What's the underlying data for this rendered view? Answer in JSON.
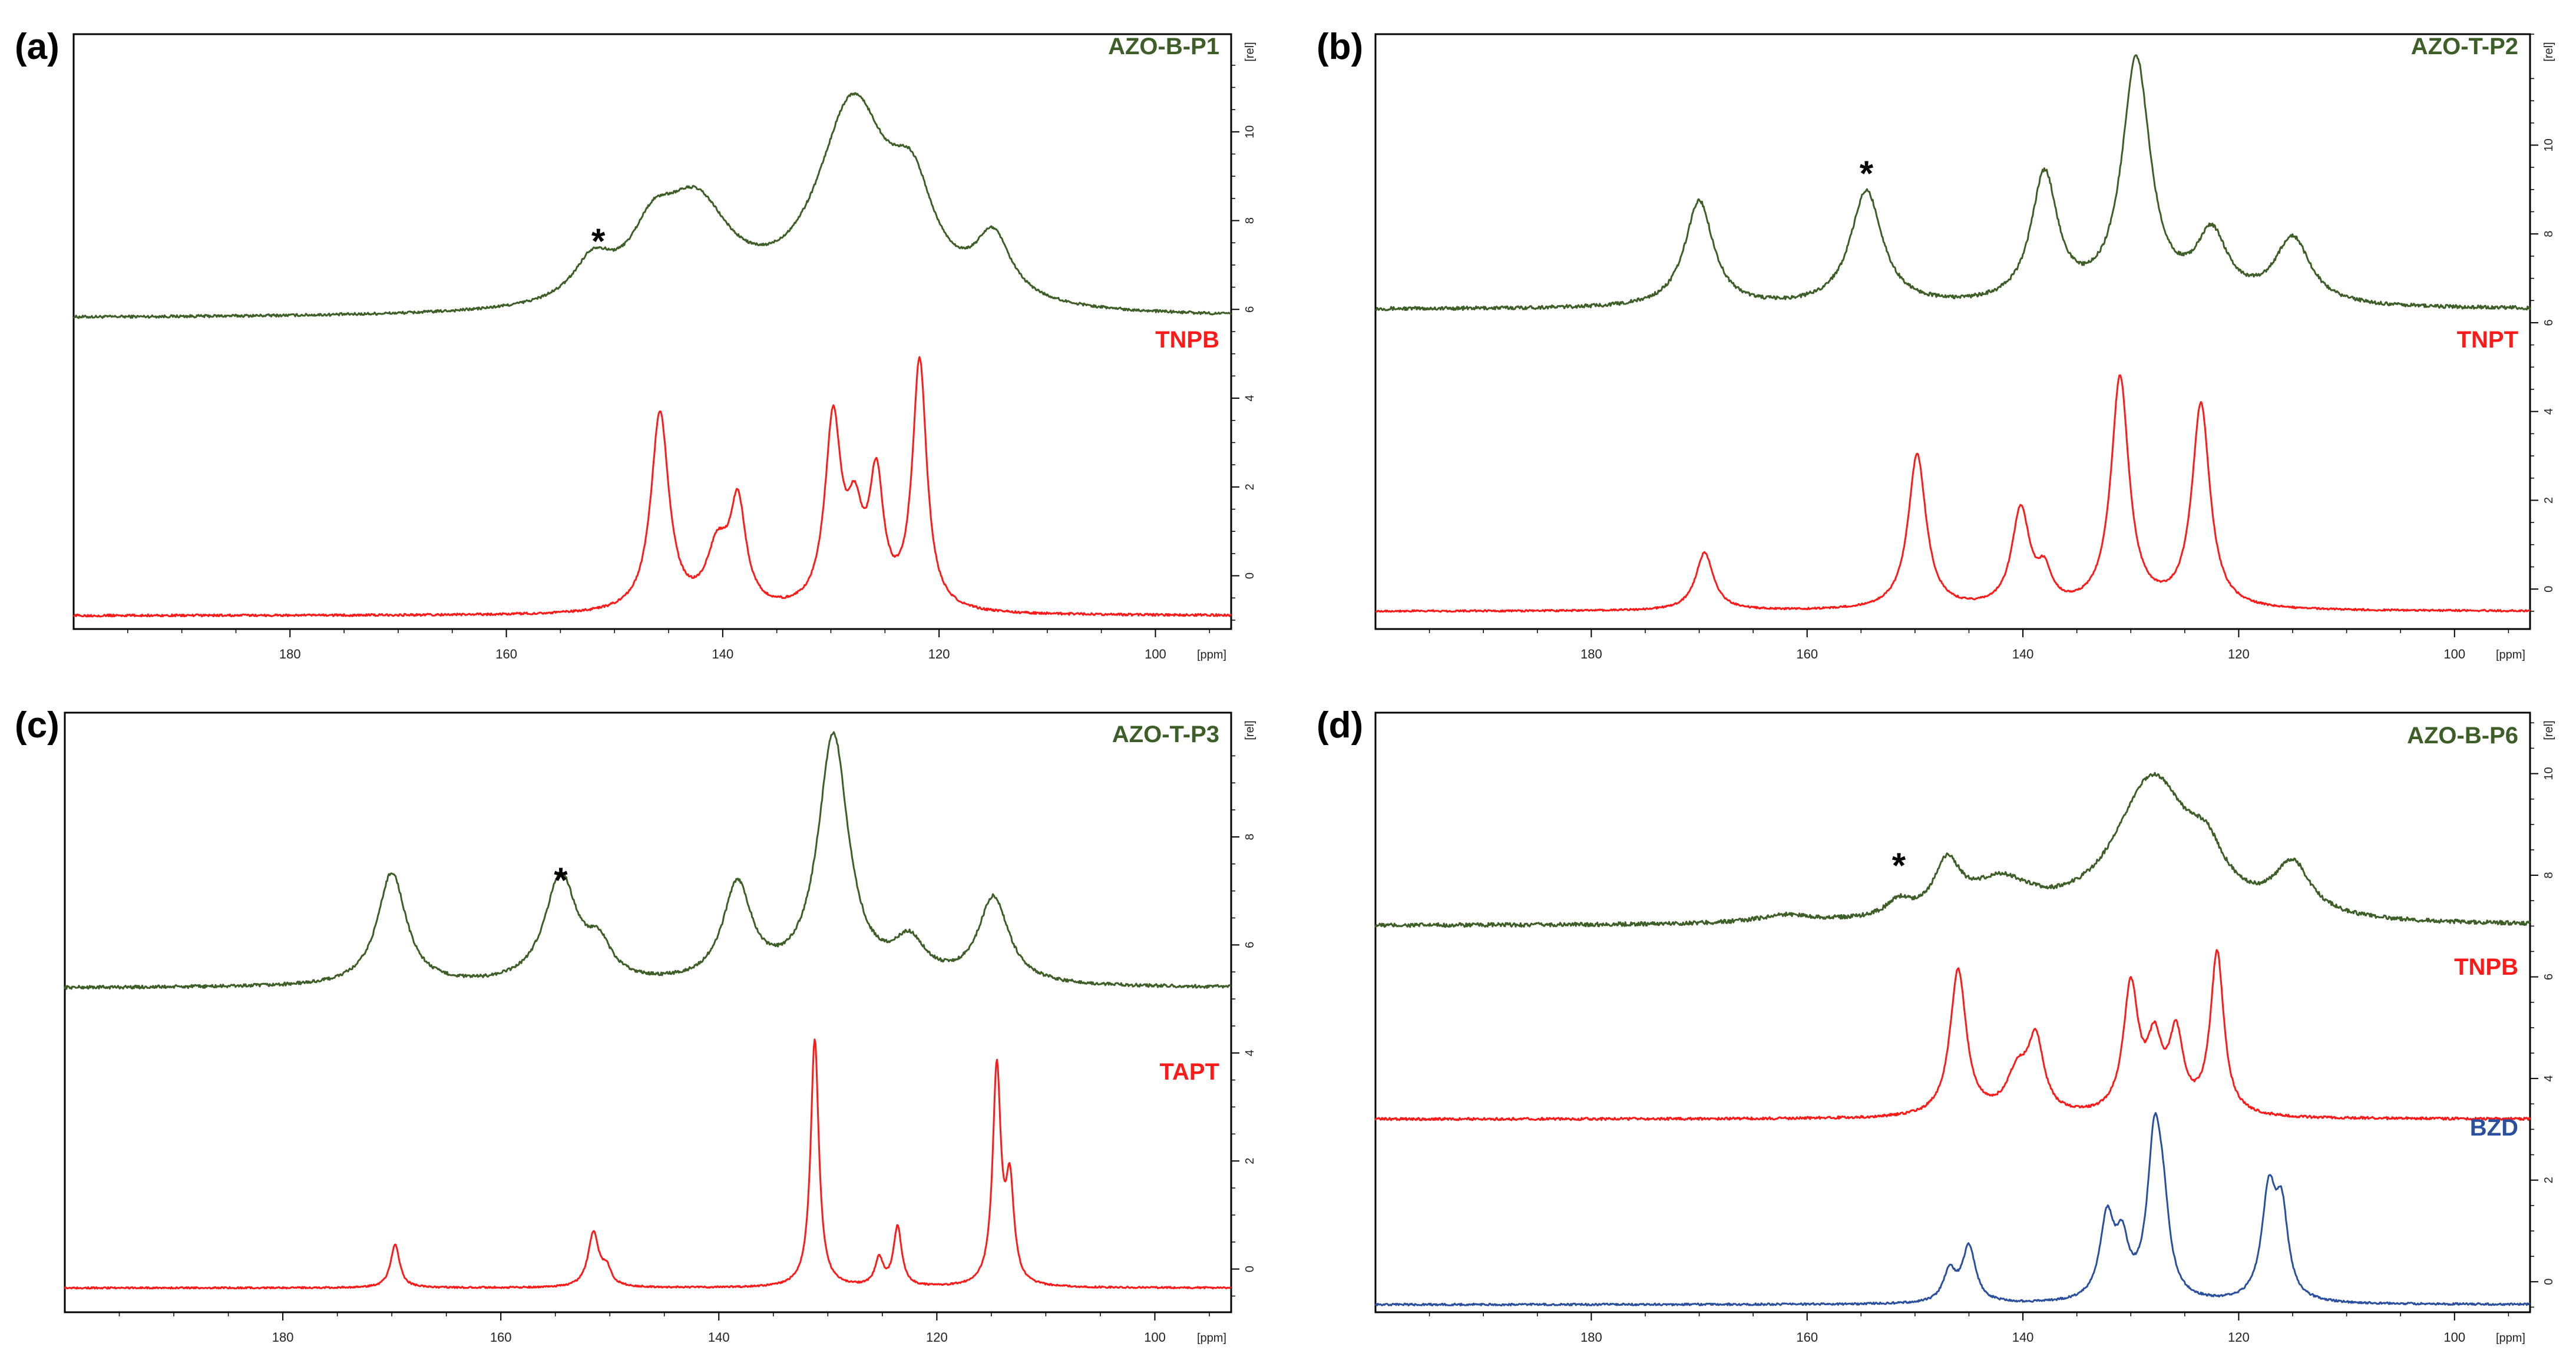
{
  "figure": {
    "colors": {
      "green": "#3d5e26",
      "red": "#ff1a1a",
      "blue": "#2a4f9e",
      "axis": "#000000"
    }
  },
  "chart_data": [
    {
      "type": "line",
      "panel_label": "(a)",
      "xlabel": "[ppm]",
      "ylabel": "[rel]",
      "xlim": [
        200,
        93
      ],
      "ylim": [
        -1.2,
        12.2
      ],
      "x_ticks": [
        "180",
        "160",
        "140",
        "120",
        "100"
      ],
      "y_ticks": [
        "0",
        "2",
        "4",
        "6",
        "8",
        "10"
      ],
      "series": [
        {
          "name": "AZO-B-P1",
          "color": "green",
          "baseline": 5.8,
          "noise": 0.03,
          "peaks": [
            [
              152,
              0.9,
              2.2
            ],
            [
              146.5,
              1.2,
              2.5
            ],
            [
              142.5,
              2.2,
              4.0
            ],
            [
              128,
              4.5,
              4.0
            ],
            [
              122.5,
              2.0,
              2.5
            ],
            [
              115,
              1.4,
              2.0
            ]
          ]
        },
        {
          "name": "TNPB",
          "color": "red",
          "baseline": -0.9,
          "noise": 0.025,
          "peaks": [
            [
              145.8,
              4.5,
              1.0
            ],
            [
              140.5,
              1.3,
              1.2
            ],
            [
              138.6,
              2.3,
              0.9
            ],
            [
              129.8,
              4.2,
              0.9
            ],
            [
              127.8,
              1.8,
              0.9
            ],
            [
              125.8,
              2.8,
              0.8
            ],
            [
              121.8,
              5.6,
              0.8
            ]
          ]
        }
      ],
      "annotations": [
        {
          "text": "*",
          "x": 151.5
        }
      ]
    },
    {
      "type": "line",
      "panel_label": "(b)",
      "xlabel": "[ppm]",
      "ylabel": "[rel]",
      "xlim": [
        200,
        93
      ],
      "ylim": [
        -0.9,
        12.5
      ],
      "x_ticks": [
        "180",
        "160",
        "140",
        "120",
        "100"
      ],
      "y_ticks": [
        "0",
        "2",
        "4",
        "6",
        "8",
        "10"
      ],
      "series": [
        {
          "name": "AZO-T-P2",
          "color": "green",
          "baseline": 6.3,
          "noise": 0.04,
          "peaks": [
            [
              170,
              2.4,
              1.6
            ],
            [
              154.5,
              2.6,
              1.8
            ],
            [
              138,
              2.9,
              1.5
            ],
            [
              129.5,
              5.5,
              1.6
            ],
            [
              122.5,
              1.5,
              1.8
            ],
            [
              115,
              1.5,
              2.0
            ]
          ]
        },
        {
          "name": "TNPT",
          "color": "red",
          "baseline": -0.5,
          "noise": 0.02,
          "peaks": [
            [
              169.5,
              1.3,
              1.0
            ],
            [
              149.8,
              3.5,
              1.0
            ],
            [
              140.2,
              2.2,
              1.0
            ],
            [
              138,
              0.7,
              0.8
            ],
            [
              131,
              5.2,
              1.0
            ],
            [
              123.5,
              4.6,
              1.0
            ]
          ]
        }
      ],
      "annotations": [
        {
          "text": "*",
          "x": 154.5
        }
      ]
    },
    {
      "type": "line",
      "panel_label": "(c)",
      "xlabel": "[ppm]",
      "ylabel": "[rel]",
      "xlim": [
        200,
        93
      ],
      "ylim": [
        -0.8,
        10.3
      ],
      "x_ticks": [
        "180",
        "160",
        "140",
        "120",
        "100"
      ],
      "y_ticks": [
        "0",
        "2",
        "4",
        "6",
        "8"
      ],
      "series": [
        {
          "name": "AZO-T-P3",
          "color": "green",
          "baseline": 5.2,
          "noise": 0.03,
          "peaks": [
            [
              170,
              2.1,
              1.6
            ],
            [
              154.5,
              2.0,
              1.8
            ],
            [
              151,
              0.6,
              1.4
            ],
            [
              138.3,
              1.8,
              1.6
            ],
            [
              129.5,
              4.6,
              1.7
            ],
            [
              122.5,
              0.7,
              1.8
            ],
            [
              114.8,
              1.6,
              1.7
            ]
          ]
        },
        {
          "name": "TAPT",
          "color": "red",
          "baseline": -0.35,
          "noise": 0.015,
          "peaks": [
            [
              169.7,
              0.8,
              0.5
            ],
            [
              151.5,
              1.0,
              0.6
            ],
            [
              150.3,
              0.3,
              0.5
            ],
            [
              131.2,
              4.6,
              0.45
            ],
            [
              125.3,
              0.5,
              0.45
            ],
            [
              123.6,
              1.1,
              0.45
            ],
            [
              114.5,
              4.0,
              0.45
            ],
            [
              113.3,
              1.8,
              0.45
            ]
          ]
        }
      ],
      "annotations": [
        {
          "text": "*",
          "x": 154.5
        }
      ]
    },
    {
      "type": "line",
      "panel_label": "(d)",
      "xlabel": "[ppm]",
      "ylabel": "[rel]",
      "xlim": [
        200,
        93
      ],
      "ylim": [
        -0.6,
        11.2
      ],
      "x_ticks": [
        "180",
        "160",
        "140",
        "120",
        "100"
      ],
      "y_ticks": [
        "0",
        "2",
        "4",
        "6",
        "8",
        "10"
      ],
      "series": [
        {
          "name": "AZO-B-P6",
          "color": "green",
          "baseline": 7.0,
          "noise": 0.04,
          "peaks": [
            [
              162,
              0.15,
              3.0
            ],
            [
              151.5,
              0.3,
              1.4
            ],
            [
              147,
              1.0,
              1.5
            ],
            [
              142,
              0.7,
              3.5
            ],
            [
              128,
              2.8,
              4.2
            ],
            [
              123,
              0.8,
              2.0
            ],
            [
              115,
              1.0,
              2.0
            ]
          ]
        },
        {
          "name": "TNPB",
          "color": "red",
          "baseline": 3.2,
          "noise": 0.025,
          "peaks": [
            [
              146,
              2.9,
              0.9
            ],
            [
              140.5,
              0.8,
              1.2
            ],
            [
              138.8,
              1.4,
              0.9
            ],
            [
              130,
              2.5,
              0.85
            ],
            [
              127.8,
              1.3,
              0.85
            ],
            [
              125.8,
              1.5,
              0.8
            ],
            [
              122,
              3.2,
              0.75
            ]
          ]
        },
        {
          "name": "BZD",
          "color": "blue",
          "baseline": -0.45,
          "noise": 0.02,
          "peaks": [
            [
              146.8,
              0.6,
              0.7
            ],
            [
              145,
              1.1,
              0.75
            ],
            [
              132.2,
              1.6,
              0.8
            ],
            [
              130.8,
              1.0,
              0.7
            ],
            [
              127.8,
              3.1,
              0.8
            ],
            [
              127,
              1.2,
              0.7
            ],
            [
              117.2,
              2.1,
              0.8
            ],
            [
              116,
              1.6,
              0.7
            ]
          ]
        }
      ],
      "annotations": [
        {
          "text": "*",
          "x": 151.5
        }
      ]
    }
  ]
}
